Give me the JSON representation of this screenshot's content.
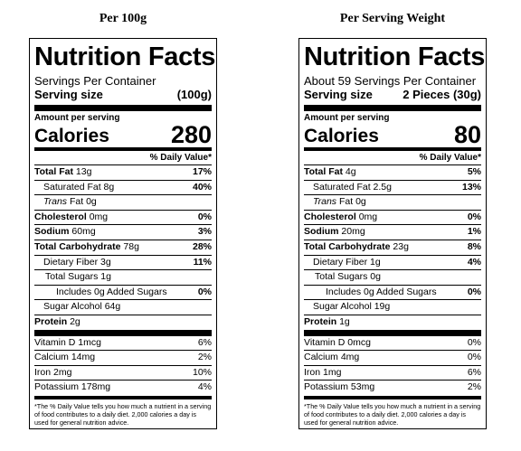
{
  "captions": [
    "Per 100g",
    "Per Serving Weight"
  ],
  "labels": [
    {
      "title": "Nutrition Facts",
      "servings": "Servings Per Container",
      "serving_size_label": "Serving size",
      "serving_size_value": "(100g)",
      "amount_per_serving": "Amount per serving",
      "calories_label": "Calories",
      "calories_value": "280",
      "dv_header": "% Daily Value*",
      "total_fat_label": "Total Fat",
      "total_fat_amount": "13g",
      "total_fat_dv": "17%",
      "sat_fat_label": "Saturated Fat 8g",
      "sat_fat_dv": "40%",
      "trans_label": "Trans",
      "trans_rest": "Fat 0g",
      "chol_label": "Cholesterol",
      "chol_amount": "0mg",
      "chol_dv": "0%",
      "sodium_label": "Sodium",
      "sodium_amount": "60mg",
      "sodium_dv": "3%",
      "carb_label": "Total Carbohydrate",
      "carb_amount": "78g",
      "carb_dv": "28%",
      "fiber_label": "Dietary Fiber 3g",
      "fiber_dv": "11%",
      "sugars_label": "Total Sugars 1g",
      "added_label": "Includes 0g Added Sugars",
      "added_dv": "0%",
      "alcohol_label": "Sugar Alcohol 64g",
      "protein_label": "Protein",
      "protein_amount": "2g",
      "vitd_label": "Vitamin D 1mcg",
      "vitd_dv": "6%",
      "calcium_label": "Calcium 14mg",
      "calcium_dv": "2%",
      "iron_label": "Iron 2mg",
      "iron_dv": "10%",
      "potassium_label": "Potassium 178mg",
      "potassium_dv": "4%",
      "footnote": "*The % Daily Value tells you how much a nutrient in a serving of food contributes to a daily diet. 2,000 calories a day is used for general nutrition advice."
    },
    {
      "title": "Nutrition Facts",
      "servings": "About 59 Servings Per Container",
      "serving_size_label": "Serving size",
      "serving_size_value": "2 Pieces (30g)",
      "amount_per_serving": "Amount per serving",
      "calories_label": "Calories",
      "calories_value": "80",
      "dv_header": "% Daily Value*",
      "total_fat_label": "Total Fat",
      "total_fat_amount": "4g",
      "total_fat_dv": "5%",
      "sat_fat_label": "Saturated Fat 2.5g",
      "sat_fat_dv": "13%",
      "trans_label": "Trans",
      "trans_rest": "Fat 0g",
      "chol_label": "Cholesterol",
      "chol_amount": "0mg",
      "chol_dv": "0%",
      "sodium_label": "Sodium",
      "sodium_amount": "20mg",
      "sodium_dv": "1%",
      "carb_label": "Total Carbohydrate",
      "carb_amount": "23g",
      "carb_dv": "8%",
      "fiber_label": "Dietary Fiber 1g",
      "fiber_dv": "4%",
      "sugars_label": "Total Sugars 0g",
      "added_label": "Includes 0g Added Sugars",
      "added_dv": "0%",
      "alcohol_label": "Sugar Alcohol 19g",
      "protein_label": "Protein",
      "protein_amount": "1g",
      "vitd_label": "Vitamin D 0mcg",
      "vitd_dv": "0%",
      "calcium_label": "Calcium 4mg",
      "calcium_dv": "0%",
      "iron_label": "Iron 1mg",
      "iron_dv": "6%",
      "potassium_label": "Potassium 53mg",
      "potassium_dv": "2%",
      "footnote": "*The % Daily Value tells you how much a nutrient in a serving of food contributes to a daily diet. 2,000 calories a day is used for general nutrition advice."
    }
  ]
}
